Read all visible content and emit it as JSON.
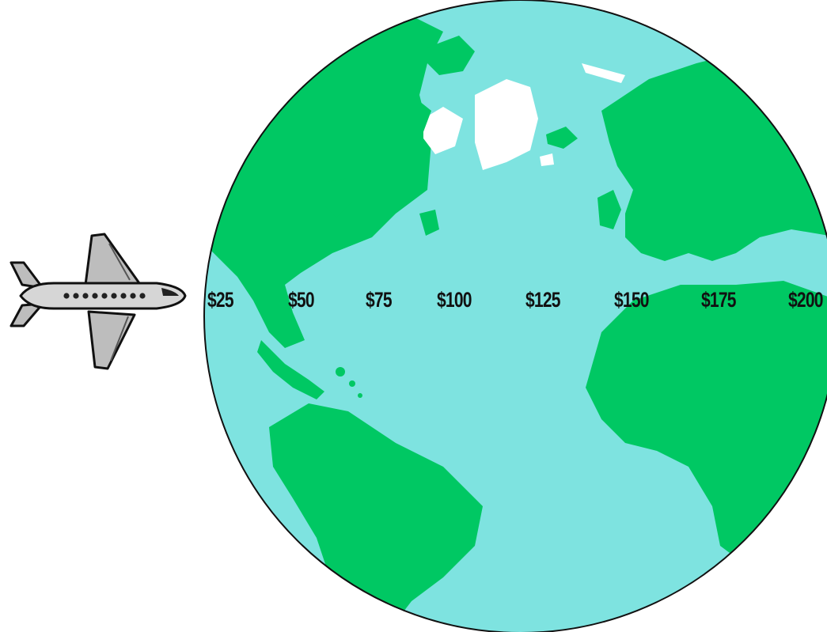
{
  "colors": {
    "ocean": "#7ee3e0",
    "land": "#00c863",
    "ice": "#ffffff",
    "outline": "#111111",
    "plane_body": "#c8c8c8"
  },
  "icons": {
    "airplane": "airplane-icon",
    "globe": "globe-icon"
  },
  "price_options": [
    {
      "label": "$25"
    },
    {
      "label": "$50"
    },
    {
      "label": "$75"
    },
    {
      "label": "$100"
    },
    {
      "label": "$125"
    },
    {
      "label": "$150"
    },
    {
      "label": "$175"
    },
    {
      "label": "$200"
    }
  ]
}
